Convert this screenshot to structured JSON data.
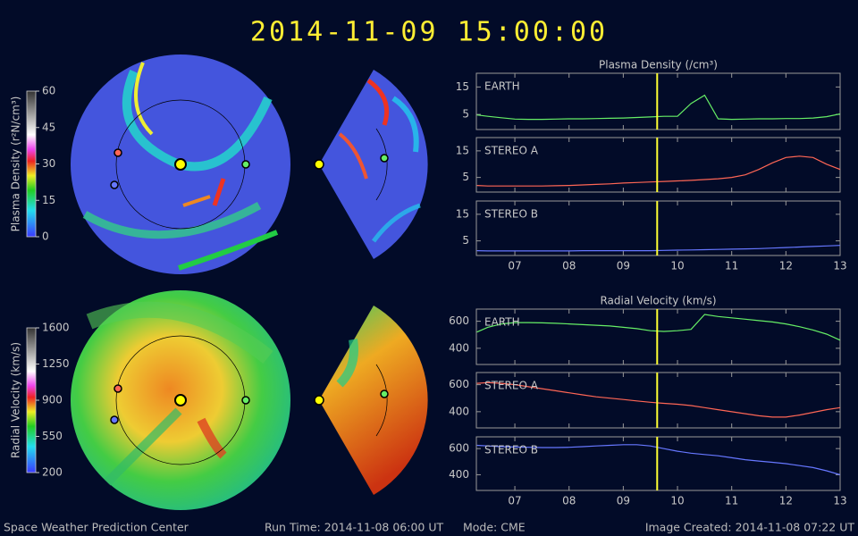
{
  "header": {
    "title": "2014-11-09 15:00:00"
  },
  "colorbars": [
    {
      "label": "Plasma Density (r²N/cm³)",
      "range": [
        0,
        60
      ],
      "ticks": [
        0,
        15,
        30,
        45,
        60
      ]
    },
    {
      "label": "Radial Velocity (km/s)",
      "range": [
        200,
        1600
      ],
      "ticks": [
        200,
        550,
        900,
        1250,
        1600
      ]
    }
  ],
  "chart_data": [
    {
      "type": "line",
      "title": "Plasma Density (/cm³)",
      "x": [
        6.3,
        6.5,
        6.75,
        7,
        7.25,
        7.5,
        7.75,
        8,
        8.25,
        8.5,
        8.75,
        9,
        9.25,
        9.5,
        9.75,
        10,
        10.25,
        10.5,
        10.75,
        11,
        11.25,
        11.5,
        11.75,
        12,
        12.25,
        12.5,
        12.75,
        13
      ],
      "series": [
        {
          "name": "EARTH",
          "color": "#66ee66",
          "values": [
            4.8,
            4.3,
            3.8,
            3.3,
            3.2,
            3.2,
            3.3,
            3.4,
            3.4,
            3.5,
            3.6,
            3.7,
            3.9,
            4.1,
            4.3,
            4.3,
            9,
            12,
            3.4,
            3.2,
            3.3,
            3.4,
            3.4,
            3.5,
            3.5,
            3.7,
            4.2,
            5.2
          ]
        }
      ],
      "xlim": [
        6.29,
        13.0
      ],
      "ylim": [
        -0.5,
        20
      ],
      "yticks": [
        5,
        15
      ],
      "marker_x": 9.625,
      "marker_color": "#ffff33"
    },
    {
      "type": "line",
      "x": [
        6.3,
        6.5,
        6.75,
        7,
        7.25,
        7.5,
        7.75,
        8,
        8.25,
        8.5,
        8.75,
        9,
        9.25,
        9.5,
        9.75,
        10,
        10.25,
        10.5,
        10.75,
        11,
        11.25,
        11.5,
        11.75,
        12,
        12.25,
        12.5,
        12.75,
        13
      ],
      "series": [
        {
          "name": "STEREO A",
          "color": "#ff6655",
          "values": [
            2,
            1.8,
            1.8,
            1.8,
            1.8,
            1.8,
            1.9,
            2,
            2.2,
            2.4,
            2.6,
            2.9,
            3.1,
            3.3,
            3.5,
            3.7,
            3.9,
            4.2,
            4.5,
            5,
            6,
            8,
            10.5,
            12.5,
            13,
            12.5,
            10,
            8
          ]
        }
      ],
      "xlim": [
        6.29,
        13.0
      ],
      "ylim": [
        -0.5,
        20
      ],
      "yticks": [
        5,
        15
      ],
      "marker_x": 9.625,
      "marker_color": "#ffff33"
    },
    {
      "type": "line",
      "x": [
        6.3,
        6.5,
        6.75,
        7,
        7.25,
        7.5,
        7.75,
        8,
        8.25,
        8.5,
        8.75,
        9,
        9.25,
        9.5,
        9.75,
        10,
        10.25,
        10.5,
        10.75,
        11,
        11.25,
        11.5,
        11.75,
        12,
        12.25,
        12.5,
        12.75,
        13
      ],
      "series": [
        {
          "name": "STEREO B",
          "color": "#6677ff",
          "values": [
            1.3,
            1.2,
            1.2,
            1.2,
            1.2,
            1.2,
            1.2,
            1.2,
            1.3,
            1.3,
            1.3,
            1.3,
            1.3,
            1.3,
            1.4,
            1.5,
            1.6,
            1.7,
            1.8,
            1.9,
            2,
            2.1,
            2.3,
            2.5,
            2.7,
            2.9,
            3.1,
            3.3
          ]
        }
      ],
      "xlim": [
        6.29,
        13.0
      ],
      "ylim": [
        -0.5,
        20
      ],
      "yticks": [
        5,
        15
      ],
      "marker_x": 9.625,
      "marker_color": "#ffff33",
      "xticks": [
        {
          "value": 7,
          "label": "07"
        },
        {
          "value": 8,
          "label": "08"
        },
        {
          "value": 9,
          "label": "09"
        },
        10,
        11,
        12,
        13
      ]
    },
    {
      "type": "line",
      "title": "Radial Velocity (km/s)",
      "x": [
        6.3,
        6.5,
        6.75,
        7,
        7.25,
        7.5,
        7.75,
        8,
        8.25,
        8.5,
        8.75,
        9,
        9.25,
        9.5,
        9.75,
        10,
        10.25,
        10.5,
        10.75,
        11,
        11.25,
        11.5,
        11.75,
        12,
        12.25,
        12.5,
        12.75,
        13
      ],
      "series": [
        {
          "name": "EARTH",
          "color": "#66ee66",
          "values": [
            520,
            555,
            580,
            590,
            590,
            588,
            585,
            580,
            575,
            570,
            565,
            555,
            545,
            530,
            525,
            530,
            540,
            650,
            635,
            625,
            615,
            605,
            595,
            580,
            560,
            535,
            505,
            460
          ]
        }
      ],
      "xlim": [
        6.29,
        13.0
      ],
      "ylim": [
        280,
        690
      ],
      "yticks": [
        400,
        600
      ],
      "marker_x": 9.625,
      "marker_color": "#ffff33"
    },
    {
      "type": "line",
      "x": [
        6.3,
        6.5,
        6.75,
        7,
        7.25,
        7.5,
        7.75,
        8,
        8.25,
        8.5,
        8.75,
        9,
        9.25,
        9.5,
        9.75,
        10,
        10.25,
        10.5,
        10.75,
        11,
        11.25,
        11.5,
        11.75,
        12,
        12.25,
        12.5,
        12.75,
        13
      ],
      "series": [
        {
          "name": "STEREO A",
          "color": "#ff6655",
          "values": [
            610,
            615,
            610,
            600,
            585,
            570,
            555,
            540,
            525,
            510,
            500,
            490,
            480,
            470,
            462,
            455,
            445,
            430,
            415,
            400,
            385,
            370,
            360,
            360,
            375,
            395,
            415,
            430
          ]
        }
      ],
      "xlim": [
        6.29,
        13.0
      ],
      "ylim": [
        280,
        690
      ],
      "yticks": [
        400,
        600
      ],
      "marker_x": 9.625,
      "marker_color": "#ffff33"
    },
    {
      "type": "line",
      "x": [
        6.3,
        6.5,
        6.75,
        7,
        7.25,
        7.5,
        7.75,
        8,
        8.25,
        8.5,
        8.75,
        9,
        9.25,
        9.5,
        9.75,
        10,
        10.25,
        10.5,
        10.75,
        11,
        11.25,
        11.5,
        11.75,
        12,
        12.25,
        12.5,
        12.75,
        13
      ],
      "series": [
        {
          "name": "STEREO B",
          "color": "#6677ff",
          "values": [
            625,
            620,
            615,
            612,
            610,
            608,
            608,
            610,
            615,
            620,
            625,
            630,
            630,
            620,
            600,
            580,
            565,
            555,
            545,
            530,
            515,
            505,
            495,
            485,
            470,
            455,
            430,
            400
          ]
        }
      ],
      "xlim": [
        6.29,
        13.0
      ],
      "ylim": [
        280,
        690
      ],
      "yticks": [
        400,
        600
      ],
      "marker_x": 9.625,
      "marker_color": "#ffff33",
      "xticks": [
        {
          "value": 7,
          "label": "07"
        },
        {
          "value": 8,
          "label": "08"
        },
        {
          "value": 9,
          "label": "09"
        },
        10,
        11,
        12,
        13
      ]
    }
  ],
  "footer": {
    "center": "Space Weather Prediction Center",
    "run_time": "Run Time: 2014-11-08 06:00 UT",
    "mode": "Mode: CME",
    "created": "Image Created: 2014-11-08 07:22 UT"
  }
}
